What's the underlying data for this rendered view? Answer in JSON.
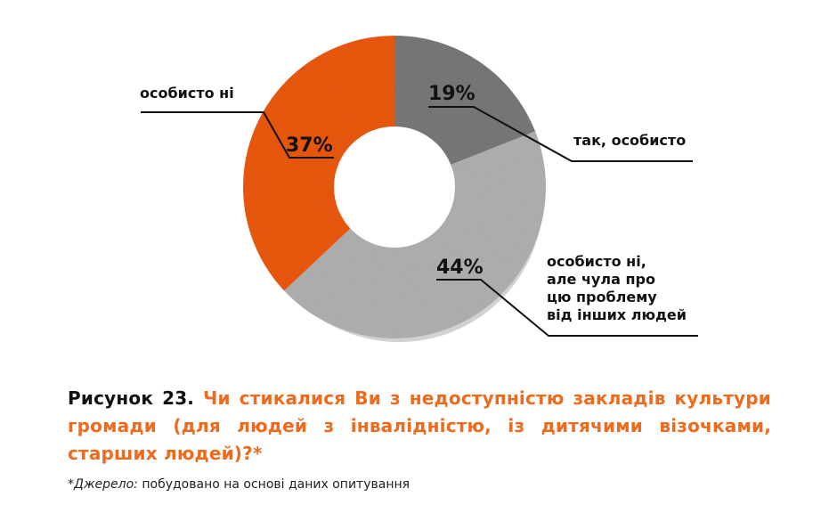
{
  "chart_data": {
    "type": "donut",
    "slices": [
      {
        "label": "так, особисто",
        "value": 19,
        "display": "19%",
        "color": "#7a7a7a"
      },
      {
        "label": "особисто ні, але чула про цю проблему від інших людей",
        "label_lines": [
          "особисто ні,",
          "але чула про",
          "цю проблему",
          "від інших людей"
        ],
        "value": 44,
        "display": "44%",
        "color": "#b3b3b3"
      },
      {
        "label": "особисто ні",
        "value": 37,
        "display": "37%",
        "color": "#ee5a0e"
      }
    ],
    "shadow_color": "#d9d9d9"
  },
  "caption": {
    "label": "Рисунок 23.",
    "question": "Чи стикалися Ви з недоступністю закладів культури громади (для людей з інвалідністю, із дитячими візочками, старших людей)?*"
  },
  "source": {
    "label": "*Джерело:",
    "text": "побудовано на основі даних опитування"
  }
}
